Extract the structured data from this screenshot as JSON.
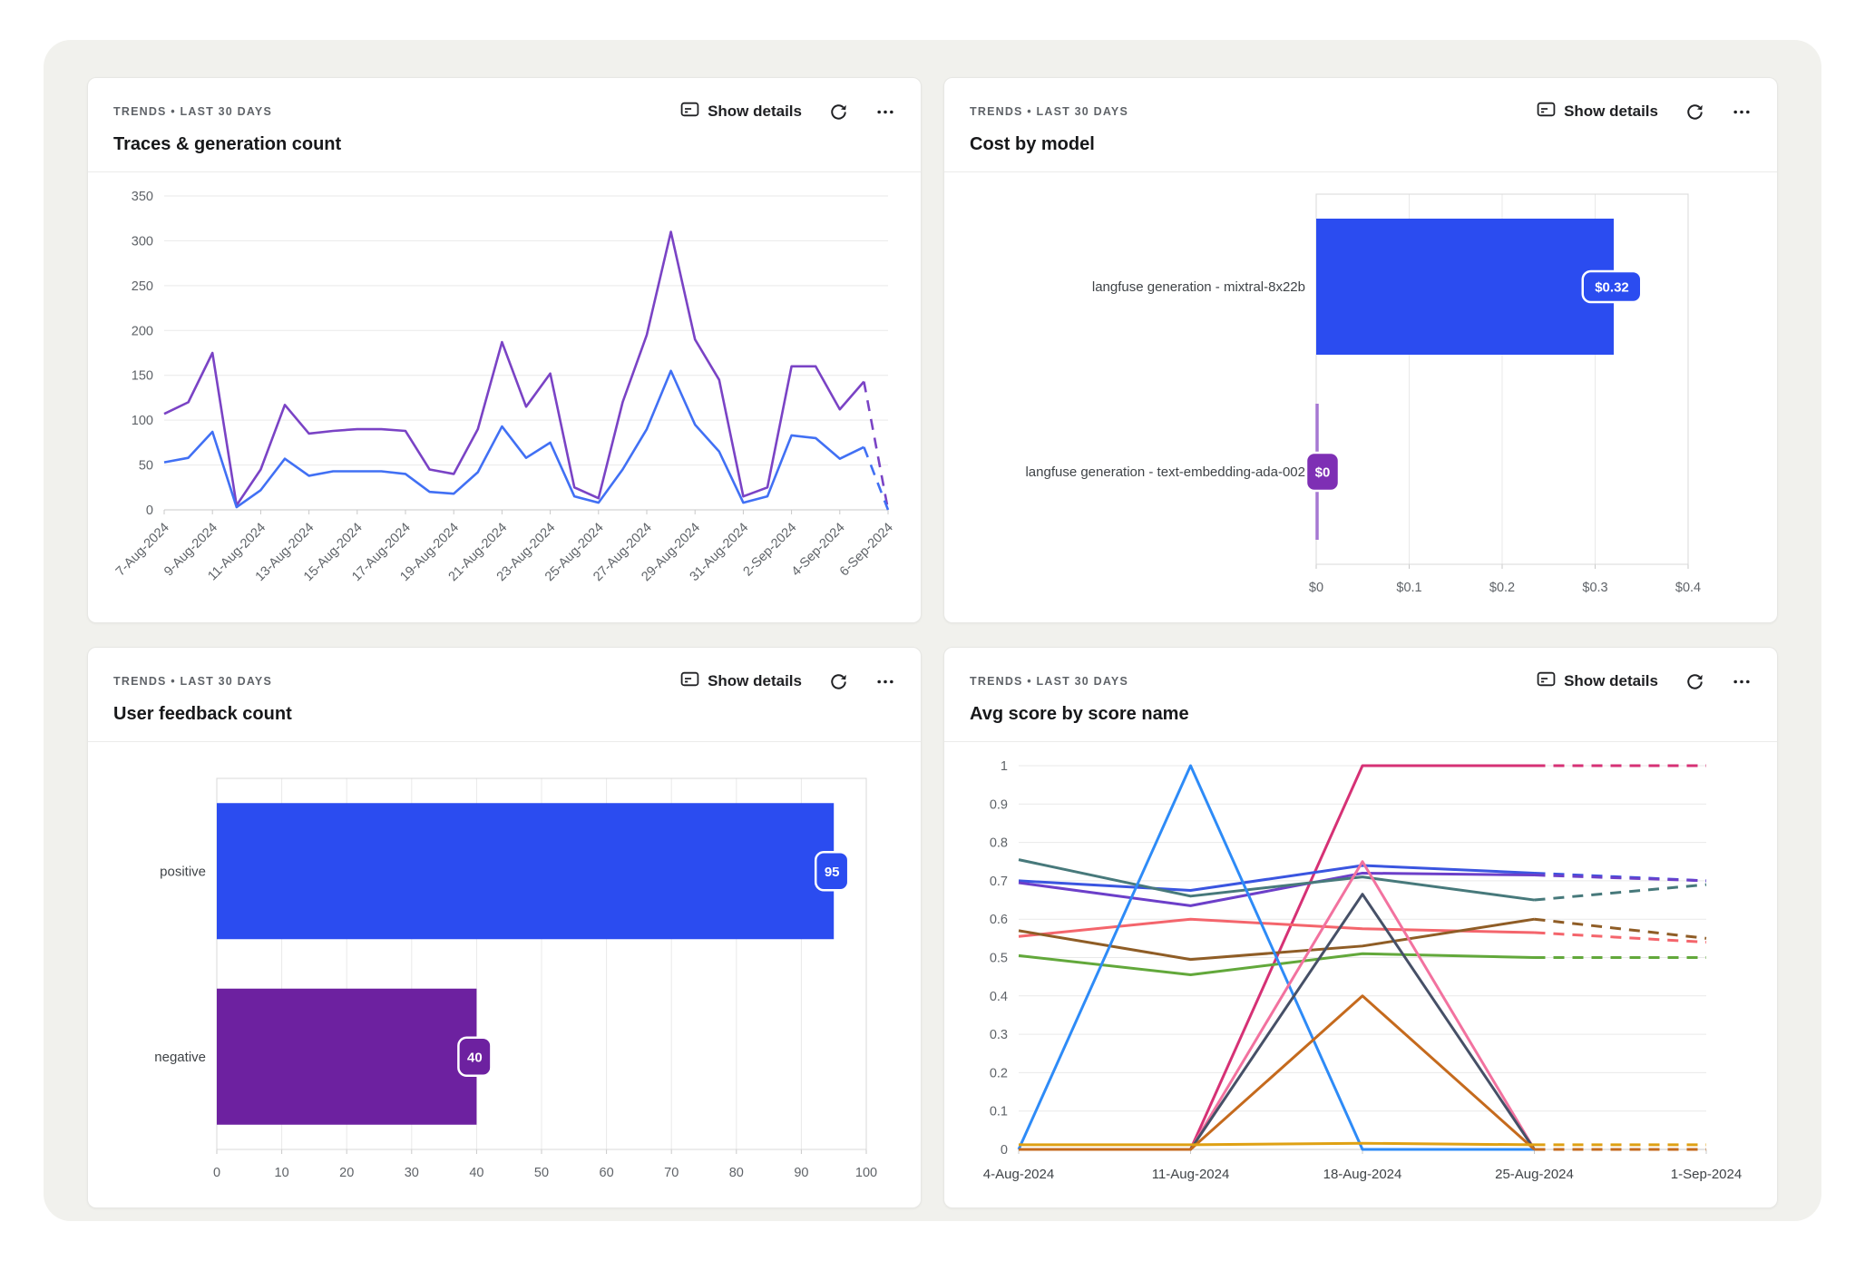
{
  "page": {
    "panel_bg": "#f1f1ed"
  },
  "cards": [
    {
      "id": "traces",
      "eyebrow": "TRENDS • LAST 30 DAYS",
      "title": "Traces & generation count",
      "show_details": "Show details"
    },
    {
      "id": "cost",
      "eyebrow": "TRENDS • LAST 30 DAYS",
      "title": "Cost by model",
      "show_details": "Show details"
    },
    {
      "id": "feedback",
      "eyebrow": "TRENDS • LAST 30 DAYS",
      "title": "User feedback count",
      "show_details": "Show details"
    },
    {
      "id": "scores",
      "eyebrow": "TRENDS • LAST 30 DAYS",
      "title": "Avg score by score name",
      "show_details": "Show details"
    }
  ],
  "chart_data": [
    {
      "type": "line",
      "title": "Traces & generation count",
      "categories": [
        "7-Aug-2024",
        "8-Aug-2024",
        "9-Aug-2024",
        "10-Aug-2024",
        "11-Aug-2024",
        "12-Aug-2024",
        "13-Aug-2024",
        "14-Aug-2024",
        "15-Aug-2024",
        "16-Aug-2024",
        "17-Aug-2024",
        "18-Aug-2024",
        "19-Aug-2024",
        "20-Aug-2024",
        "21-Aug-2024",
        "22-Aug-2024",
        "23-Aug-2024",
        "24-Aug-2024",
        "25-Aug-2024",
        "26-Aug-2024",
        "27-Aug-2024",
        "28-Aug-2024",
        "29-Aug-2024",
        "30-Aug-2024",
        "31-Aug-2024",
        "1-Sep-2024",
        "2-Sep-2024",
        "3-Sep-2024",
        "4-Sep-2024",
        "5-Sep-2024",
        "6-Sep-2024"
      ],
      "shown_tick_labels": [
        "7-Aug-2024",
        "9-Aug-2024",
        "11-Aug-2024",
        "13-Aug-2024",
        "15-Aug-2024",
        "17-Aug-2024",
        "19-Aug-2024",
        "21-Aug-2024",
        "23-Aug-2024",
        "25-Aug-2024",
        "27-Aug-2024",
        "29-Aug-2024",
        "31-Aug-2024",
        "2-Sep-2024",
        "4-Sep-2024",
        "6-Sep-2024"
      ],
      "ylim": [
        0,
        350
      ],
      "ytick_step": 50,
      "grid": "horizontal",
      "legend": "none",
      "dashed_tail_points": 1,
      "series": [
        {
          "name": "purple-series",
          "color": "#7a43c5",
          "values": [
            107,
            120,
            175,
            5,
            45,
            117,
            85,
            88,
            90,
            90,
            88,
            45,
            40,
            90,
            187,
            115,
            152,
            25,
            13,
            120,
            195,
            310,
            190,
            145,
            15,
            25,
            160,
            160,
            112,
            143,
            0
          ]
        },
        {
          "name": "blue-series",
          "color": "#4170f4",
          "values": [
            53,
            58,
            87,
            3,
            22,
            57,
            38,
            43,
            43,
            43,
            40,
            20,
            18,
            42,
            93,
            58,
            75,
            15,
            8,
            45,
            90,
            155,
            95,
            65,
            8,
            15,
            83,
            80,
            57,
            70,
            0
          ]
        }
      ]
    },
    {
      "type": "bar",
      "orientation": "horizontal",
      "title": "Cost by model",
      "categories": [
        "langfuse generation - mixtral-8x22b",
        "langfuse generation - text-embedding-ada-002"
      ],
      "values": [
        0.32,
        0
      ],
      "value_labels": [
        "$0.32",
        "$0"
      ],
      "bar_colors": [
        "#2b4cf0",
        "#7e2fb4"
      ],
      "zero_line_color": "#a678d2",
      "xlim": [
        0,
        0.4
      ],
      "xticks": [
        "$0",
        "$0.1",
        "$0.2",
        "$0.3",
        "$0.4"
      ],
      "grid": "vertical"
    },
    {
      "type": "bar",
      "orientation": "horizontal",
      "title": "User feedback count",
      "categories": [
        "positive",
        "negative"
      ],
      "values": [
        95,
        40
      ],
      "value_labels": [
        "95",
        "40"
      ],
      "bar_colors": [
        "#2b4cf0",
        "#6d21a0"
      ],
      "xlim": [
        0,
        100
      ],
      "xticks": [
        "0",
        "10",
        "20",
        "30",
        "40",
        "50",
        "60",
        "70",
        "80",
        "90",
        "100"
      ],
      "grid": "vertical"
    },
    {
      "type": "line",
      "title": "Avg score by score name",
      "categories": [
        "4-Aug-2024",
        "11-Aug-2024",
        "18-Aug-2024",
        "25-Aug-2024",
        "1-Sep-2024"
      ],
      "ylim": [
        0,
        1
      ],
      "ytick_step": 0.1,
      "grid": "horizontal",
      "legend": "none",
      "dashed_tail_points": 1,
      "series": [
        {
          "name": "magenta-series",
          "color": "#d63175",
          "values": [
            0,
            0,
            1,
            1,
            1
          ]
        },
        {
          "name": "royal-blue-series",
          "color": "#3a55e0",
          "values": [
            0.7,
            0.675,
            0.74,
            0.72,
            0.7
          ]
        },
        {
          "name": "violet-series",
          "color": "#6c3fc9",
          "values": [
            0.695,
            0.635,
            0.72,
            0.715,
            0.7
          ]
        },
        {
          "name": "teal-series",
          "color": "#47797b",
          "values": [
            0.755,
            0.66,
            0.71,
            0.65,
            0.69
          ]
        },
        {
          "name": "salmon-series",
          "color": "#f4656c",
          "values": [
            0.555,
            0.6,
            0.575,
            0.565,
            0.54
          ]
        },
        {
          "name": "brown-series",
          "color": "#8f5d26",
          "values": [
            0.57,
            0.495,
            0.53,
            0.6,
            0.55
          ]
        },
        {
          "name": "green-series",
          "color": "#62a83b",
          "values": [
            0.505,
            0.455,
            0.51,
            0.5,
            0.5
          ]
        },
        {
          "name": "bright-blue-series",
          "color": "#2e8bf7",
          "values": [
            0,
            1,
            0,
            0,
            0
          ]
        },
        {
          "name": "pink-series",
          "color": "#f2729f",
          "values": [
            0,
            0,
            0.75,
            0,
            0
          ]
        },
        {
          "name": "slate-series",
          "color": "#465067",
          "values": [
            0,
            0,
            0.665,
            0,
            0
          ]
        },
        {
          "name": "orange-series",
          "color": "#c56a1d",
          "values": [
            0,
            0,
            0.4,
            0,
            0
          ]
        },
        {
          "name": "gold-series",
          "color": "#dfa114",
          "values": [
            0.012,
            0.012,
            0.016,
            0.012,
            0.012
          ]
        }
      ]
    }
  ]
}
